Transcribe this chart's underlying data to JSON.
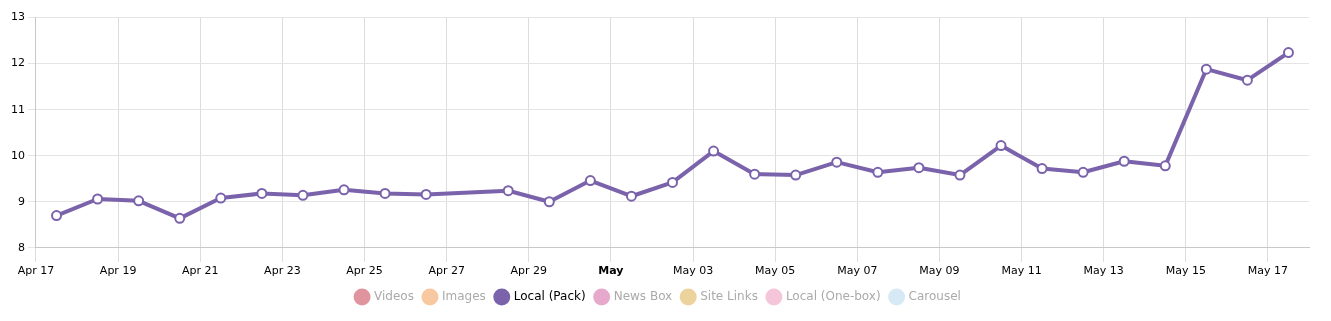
{
  "chart_data": {
    "type": "line",
    "x": [
      "--04-17T12:00",
      "--04-18T12:00",
      "--04-19T12:00",
      "--04-20T12:00",
      "--04-21T12:00",
      "--04-22T12:00",
      "--04-23T12:00",
      "--04-24T12:00",
      "--04-25T12:00",
      "--04-26T12:00",
      "--04-28T12:00",
      "--04-29T12:00",
      "--04-30T12:00",
      "--05-01T12:00",
      "--05-02T12:00",
      "--05-03T12:00",
      "--05-04T12:00",
      "--05-05T12:00",
      "--05-06T12:00",
      "--05-07T12:00",
      "--05-08T12:00",
      "--05-09T12:00",
      "--05-10T12:00",
      "--05-11T12:00",
      "--05-12T12:00",
      "--05-13T12:00",
      "--05-14T12:00",
      "--05-15T12:00",
      "--05-16T12:00",
      "--05-17T12:00"
    ],
    "series": [
      {
        "name": "Videos",
        "color": "#e0959e",
        "values": [
          null,
          null,
          null,
          null,
          null,
          null,
          null,
          null,
          null,
          null,
          null,
          null,
          null,
          null,
          null,
          null,
          null,
          null,
          null,
          null,
          null,
          null,
          null,
          null,
          null,
          null,
          null,
          null,
          null,
          null
        ]
      },
      {
        "name": "Images",
        "color": "#f8c9a0",
        "values": [
          null,
          null,
          null,
          null,
          null,
          null,
          null,
          null,
          null,
          null,
          null,
          null,
          null,
          null,
          null,
          null,
          null,
          null,
          null,
          null,
          null,
          null,
          null,
          null,
          null,
          null,
          null,
          null,
          null,
          null
        ]
      },
      {
        "name": "Local (Pack)",
        "color": "#7b63ac",
        "values": [
          8.7,
          9.06,
          9.02,
          8.64,
          9.08,
          9.18,
          9.14,
          9.26,
          9.18,
          9.16,
          9.24,
          9.0,
          9.46,
          9.12,
          9.42,
          10.1,
          9.6,
          9.58,
          9.86,
          9.64,
          9.74,
          9.58,
          10.22,
          9.72,
          9.64,
          9.88,
          9.78,
          11.88,
          11.64,
          12.24
        ]
      },
      {
        "name": "News Box",
        "color": "#e6a9cc",
        "values": [
          null,
          null,
          null,
          null,
          null,
          null,
          null,
          null,
          null,
          null,
          null,
          null,
          null,
          null,
          null,
          null,
          null,
          null,
          null,
          null,
          null,
          null,
          null,
          null,
          null,
          null,
          null,
          null,
          null,
          null
        ]
      },
      {
        "name": "Site Links",
        "color": "#ecd29c",
        "values": [
          null,
          null,
          null,
          null,
          null,
          null,
          null,
          null,
          null,
          null,
          null,
          null,
          null,
          null,
          null,
          null,
          null,
          null,
          null,
          null,
          null,
          null,
          null,
          null,
          null,
          null,
          null,
          null,
          null,
          null
        ]
      },
      {
        "name": "Local (One-box)",
        "color": "#f5c6d9",
        "values": [
          null,
          null,
          null,
          null,
          null,
          null,
          null,
          null,
          null,
          null,
          null,
          null,
          null,
          null,
          null,
          null,
          null,
          null,
          null,
          null,
          null,
          null,
          null,
          null,
          null,
          null,
          null,
          null,
          null,
          null
        ]
      },
      {
        "name": "Carousel",
        "color": "#d6e9f4",
        "values": [
          null,
          null,
          null,
          null,
          null,
          null,
          null,
          null,
          null,
          null,
          null,
          null,
          null,
          null,
          null,
          null,
          null,
          null,
          null,
          null,
          null,
          null,
          null,
          null,
          null,
          null,
          null,
          null,
          null,
          null
        ]
      }
    ],
    "xlim": [
      "--04-17",
      "--05-18"
    ],
    "xticks": [
      {
        "value": "--04-17",
        "label": "Apr 17"
      },
      {
        "value": "--04-19",
        "label": "Apr 19"
      },
      {
        "value": "--04-21",
        "label": "Apr 21"
      },
      {
        "value": "--04-23",
        "label": "Apr 23"
      },
      {
        "value": "--04-25",
        "label": "Apr 25"
      },
      {
        "value": "--04-27",
        "label": "Apr 27"
      },
      {
        "value": "--04-29",
        "label": "Apr 29"
      },
      {
        "value": "--05-01",
        "label": "May"
      },
      {
        "value": "--05-03",
        "label": "May 03"
      },
      {
        "value": "--05-05",
        "label": "May 05"
      },
      {
        "value": "--05-07",
        "label": "May 07"
      },
      {
        "value": "--05-09",
        "label": "May 09"
      },
      {
        "value": "--05-11",
        "label": "May 11"
      },
      {
        "value": "--05-13",
        "label": "May 13"
      },
      {
        "value": "--05-15",
        "label": "May 15"
      },
      {
        "value": "--05-17",
        "label": "May 17"
      }
    ],
    "ylim": [
      8,
      13
    ],
    "yticks": [
      8,
      9,
      10,
      11,
      12,
      13
    ],
    "grid": true,
    "legend": "bottom",
    "marker": "circle",
    "line_style": "solid"
  }
}
